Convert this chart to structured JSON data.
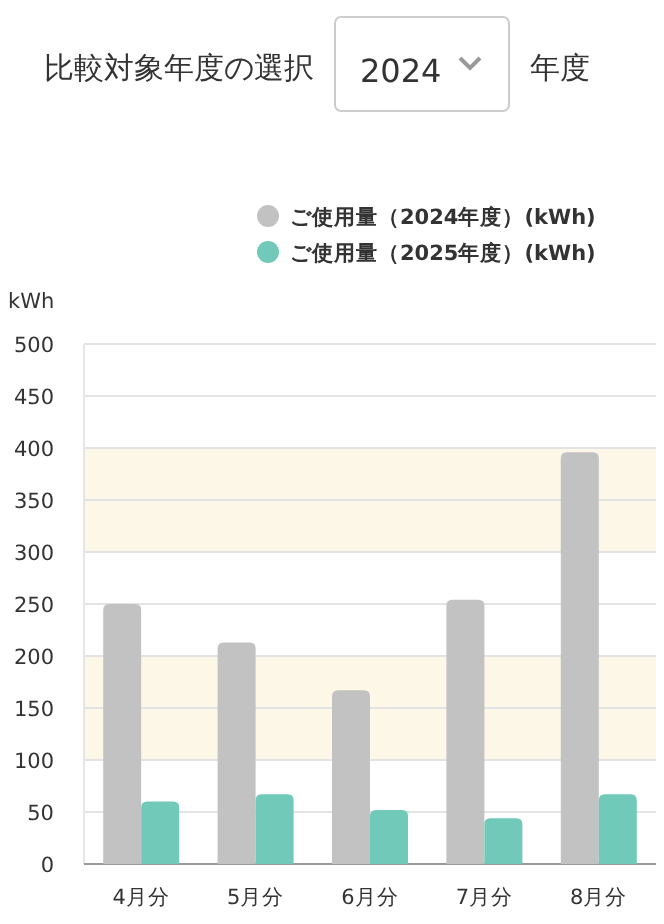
{
  "chart_data": {
    "type": "bar",
    "title": "比較対象年度の選択",
    "annotations": [
      "2024",
      "年度"
    ],
    "ylabel": "kWh",
    "categories": [
      "4月分",
      "5月分",
      "6月分",
      "7月分",
      "8月分"
    ],
    "series": [
      {
        "name": "ご使用量（2024年度）(kWh)",
        "color": "#c2c2c2",
        "values": [
          250,
          213,
          167,
          254,
          396
        ]
      },
      {
        "name": "ご使用量（2025年度）(kWh)",
        "color": "#71c9b9",
        "values": [
          60,
          67,
          52,
          44,
          67
        ]
      }
    ],
    "ylim": [
      0,
      500
    ],
    "yticks": [
      0,
      50,
      100,
      150,
      200,
      250,
      300,
      350,
      400,
      450,
      500
    ],
    "grid": "y",
    "legend": "top right",
    "marker": "circle",
    "bands": [
      {
        "axis": "y",
        "from": 100,
        "to": 200,
        "color": "#fdf7e7"
      },
      {
        "axis": "y",
        "from": 300,
        "to": 400,
        "color": "#fdf7e7"
      }
    ]
  }
}
